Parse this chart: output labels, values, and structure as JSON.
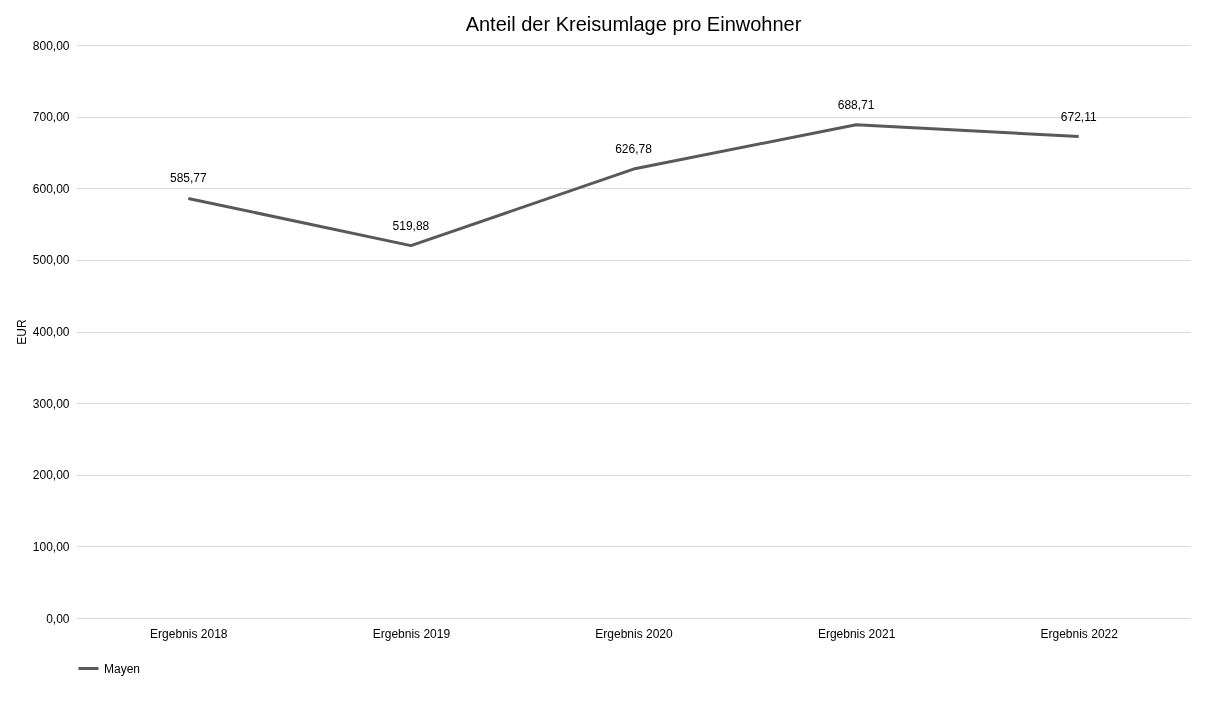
{
  "chart_data": {
    "type": "line",
    "title": "Anteil der Kreisumlage pro Einwohner",
    "ylabel": "EUR",
    "categories": [
      "Ergebnis 2018",
      "Ergebnis 2019",
      "Ergebnis 2020",
      "Ergebnis 2021",
      "Ergebnis 2022"
    ],
    "series": [
      {
        "name": "Mayen",
        "color": "#595959",
        "values": [
          585.77,
          519.88,
          626.78,
          688.71,
          672.11
        ],
        "value_labels": [
          "585,77",
          "519,88",
          "626,78",
          "688,71",
          "672,11"
        ]
      }
    ],
    "ylim": [
      0,
      800
    ],
    "yticks": [
      {
        "value": 0,
        "label": "0,00"
      },
      {
        "value": 100,
        "label": "100,00"
      },
      {
        "value": 200,
        "label": "200,00"
      },
      {
        "value": 300,
        "label": "300,00"
      },
      {
        "value": 400,
        "label": "400,00"
      },
      {
        "value": 500,
        "label": "500,00"
      },
      {
        "value": 600,
        "label": "600,00"
      },
      {
        "value": 700,
        "label": "700,00"
      },
      {
        "value": 800,
        "label": "800,00"
      }
    ],
    "grid": "y",
    "legend": "bottom",
    "marker": "none",
    "line_style": "solid"
  }
}
